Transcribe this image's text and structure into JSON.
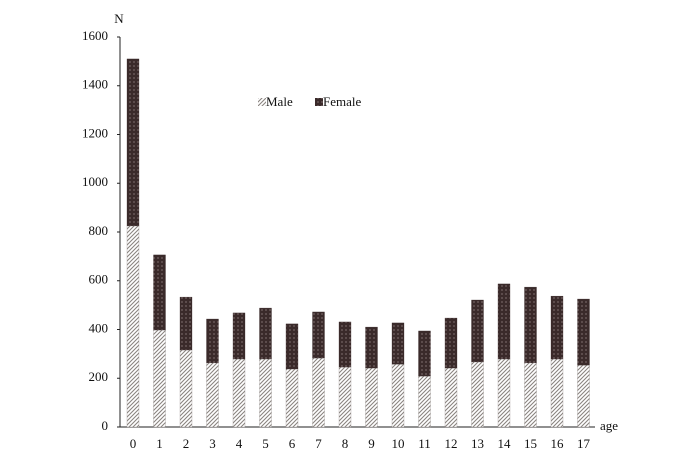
{
  "chart_data": {
    "type": "stacked_bar",
    "y_label": "N",
    "x_label": "age",
    "categories": [
      "0",
      "1",
      "2",
      "3",
      "4",
      "5",
      "6",
      "7",
      "8",
      "9",
      "10",
      "11",
      "12",
      "13",
      "14",
      "15",
      "16",
      "17"
    ],
    "series": [
      {
        "name": "Male",
        "color": "#8a8480",
        "pattern": "hatch",
        "values": [
          825,
          398,
          316,
          263,
          279,
          279,
          238,
          283,
          246,
          242,
          258,
          209,
          242,
          267,
          279,
          263,
          279,
          254
        ]
      },
      {
        "name": "Female",
        "color": "#3a2a2a",
        "pattern": "dots",
        "values": [
          685,
          308,
          217,
          180,
          189,
          209,
          185,
          189,
          185,
          168,
          169,
          185,
          205,
          254,
          308,
          311,
          258,
          271
        ]
      }
    ],
    "ylim": [
      0,
      1600
    ],
    "yticks": [
      0,
      200,
      400,
      600,
      800,
      1000,
      1200,
      1400,
      1600
    ],
    "grid": false,
    "legend": "top"
  }
}
